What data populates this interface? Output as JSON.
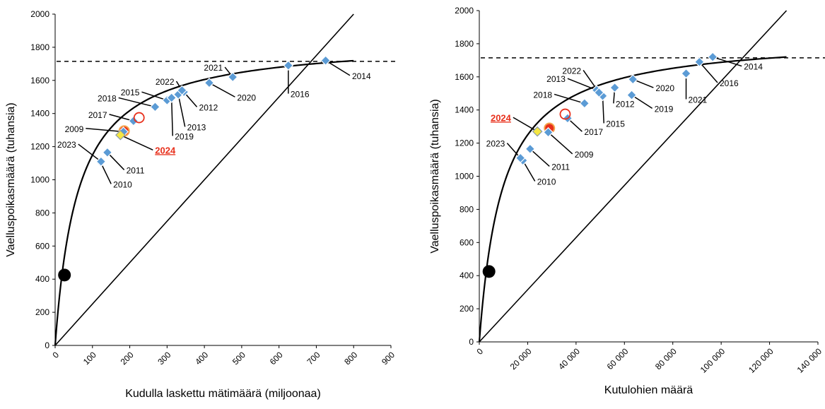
{
  "charts": [
    {
      "type": "scatter",
      "xlabel": "Kudulla laskettu mätimäärä (miljoonaa)",
      "ylabel": "Vaelluspoikasmäärä (tuhansia)",
      "xlim": [
        0,
        900
      ],
      "ylim": [
        0,
        2000
      ],
      "xticks": [
        0,
        100,
        200,
        300,
        400,
        500,
        600,
        700,
        800,
        900
      ],
      "xtick_labels": [
        "0",
        "100",
        "200",
        "300",
        "400",
        "500",
        "600",
        "700",
        "800",
        "900"
      ],
      "yticks": [
        0,
        200,
        400,
        600,
        800,
        1000,
        1200,
        1400,
        1600,
        1800,
        2000
      ],
      "ytick_labels": [
        "0",
        "200",
        "400",
        "600",
        "800",
        "1000",
        "1200",
        "1400",
        "1600",
        "1800",
        "2000"
      ],
      "reference_line_y": 1715,
      "replacement_line": [
        [
          0,
          0
        ],
        [
          800,
          2000
        ]
      ],
      "curve": {
        "a": 1850,
        "b": 61,
        "xmax": 800
      },
      "points": [
        {
          "label": "2009",
          "x": 183,
          "y": 1290,
          "color": "#5b9bd5",
          "lx": 82,
          "ly": 1310
        },
        {
          "label": "2010",
          "x": 122,
          "y": 1105,
          "color": "#5b9bd5",
          "lx": 150,
          "ly": 975
        },
        {
          "label": "2011",
          "x": 140,
          "y": 1165,
          "color": "#5b9bd5",
          "lx": 185,
          "ly": 1060
        },
        {
          "label": "2012",
          "x": 345,
          "y": 1530,
          "color": "#5b9bd5",
          "lx": 380,
          "ly": 1440
        },
        {
          "label": "2013",
          "x": 330,
          "y": 1515,
          "color": "#5b9bd5",
          "lx": 348,
          "ly": 1320
        },
        {
          "label": "2014",
          "x": 725,
          "y": 1720,
          "color": "#5b9bd5",
          "lx": 790,
          "ly": 1630
        },
        {
          "label": "2015",
          "x": 300,
          "y": 1480,
          "color": "#5b9bd5",
          "lx": 232,
          "ly": 1530
        },
        {
          "label": "2016",
          "x": 625,
          "y": 1690,
          "color": "#5b9bd5",
          "lx": 625,
          "ly": 1520
        },
        {
          "label": "2017",
          "x": 210,
          "y": 1355,
          "color": "#5b9bd5",
          "lx": 145,
          "ly": 1395
        },
        {
          "label": "2018",
          "x": 268,
          "y": 1440,
          "color": "#5b9bd5",
          "lx": 170,
          "ly": 1495
        },
        {
          "label": "2019",
          "x": 312,
          "y": 1495,
          "color": "#5b9bd5",
          "lx": 315,
          "ly": 1265
        },
        {
          "label": "2020",
          "x": 413,
          "y": 1585,
          "color": "#5b9bd5",
          "lx": 482,
          "ly": 1500
        },
        {
          "label": "2021",
          "x": 476,
          "y": 1620,
          "color": "#5b9bd5",
          "lx": 455,
          "ly": 1680
        },
        {
          "label": "2022",
          "x": 340,
          "y": 1540,
          "color": "#5b9bd5",
          "lx": 325,
          "ly": 1595
        },
        {
          "label": "2023",
          "x": 123,
          "y": 1110,
          "color": "#5b9bd5",
          "lx": 62,
          "ly": 1215
        },
        {
          "label": "2024",
          "x": 175,
          "y": 1270,
          "color": "#f5e642",
          "lx": 262,
          "ly": 1180,
          "highlight": true
        }
      ],
      "markers": [
        {
          "type": "filled",
          "x": 185,
          "y": 1295,
          "color": "#e8301c"
        },
        {
          "type": "ring",
          "x": 225,
          "y": 1375,
          "color": "#e8301c"
        },
        {
          "type": "black",
          "x": 25,
          "y": 425,
          "color": "#000000"
        }
      ]
    },
    {
      "type": "scatter",
      "xlabel": "Kutulohien määrä",
      "ylabel": "Vaelluspoikasmäärä (tuhansia)",
      "xlim": [
        0,
        140000
      ],
      "ylim": [
        0,
        2000
      ],
      "xticks": [
        0,
        20000,
        40000,
        60000,
        80000,
        100000,
        120000,
        140000
      ],
      "xtick_labels": [
        "0",
        "20 000",
        "40 000",
        "60 000",
        "80 000",
        "100 000",
        "120 000",
        "140 000"
      ],
      "yticks": [
        0,
        200,
        400,
        600,
        800,
        1000,
        1200,
        1400,
        1600,
        1800,
        2000
      ],
      "ytick_labels": [
        "0",
        "200",
        "400",
        "600",
        "800",
        "1000",
        "1200",
        "1400",
        "1600",
        "1800",
        "2000"
      ],
      "reference_line_y": 1715,
      "replacement_line": [
        [
          0,
          0
        ],
        [
          127000,
          2000
        ]
      ],
      "curve": {
        "a": 1850,
        "b": 9600,
        "xmax": 127000
      },
      "points": [
        {
          "label": "2009",
          "x": 28500,
          "y": 1265,
          "color": "#5b9bd5",
          "lx": 38500,
          "ly": 1135
        },
        {
          "label": "2010",
          "x": 18000,
          "y": 1095,
          "color": "#5b9bd5",
          "lx": 23000,
          "ly": 970
        },
        {
          "label": "2011",
          "x": 21000,
          "y": 1165,
          "color": "#5b9bd5",
          "lx": 29000,
          "ly": 1060
        },
        {
          "label": "2012",
          "x": 56000,
          "y": 1535,
          "color": "#5b9bd5",
          "lx": 55500,
          "ly": 1440
        },
        {
          "label": "2013",
          "x": 48500,
          "y": 1520,
          "color": "#5b9bd5",
          "lx": 36500,
          "ly": 1590
        },
        {
          "label": "2014",
          "x": 96500,
          "y": 1720,
          "color": "#5b9bd5",
          "lx": 108500,
          "ly": 1665
        },
        {
          "label": "2015",
          "x": 51000,
          "y": 1485,
          "color": "#5b9bd5",
          "lx": 51500,
          "ly": 1320
        },
        {
          "label": "2016",
          "x": 91000,
          "y": 1690,
          "color": "#5b9bd5",
          "lx": 98500,
          "ly": 1565
        },
        {
          "label": "2017",
          "x": 36500,
          "y": 1350,
          "color": "#5b9bd5",
          "lx": 42500,
          "ly": 1270
        },
        {
          "label": "2018",
          "x": 43500,
          "y": 1440,
          "color": "#5b9bd5",
          "lx": 31000,
          "ly": 1495
        },
        {
          "label": "2019",
          "x": 63000,
          "y": 1490,
          "color": "#5b9bd5",
          "lx": 71500,
          "ly": 1410
        },
        {
          "label": "2020",
          "x": 63500,
          "y": 1585,
          "color": "#5b9bd5",
          "lx": 72000,
          "ly": 1535
        },
        {
          "label": "2021",
          "x": 85500,
          "y": 1620,
          "color": "#5b9bd5",
          "lx": 85500,
          "ly": 1465
        },
        {
          "label": "2022",
          "x": 49500,
          "y": 1505,
          "color": "#5b9bd5",
          "lx": 43000,
          "ly": 1640
        },
        {
          "label": "2023",
          "x": 17000,
          "y": 1110,
          "color": "#5b9bd5",
          "lx": 11500,
          "ly": 1200
        },
        {
          "label": "2024",
          "x": 24000,
          "y": 1270,
          "color": "#f5e642",
          "lx": 14000,
          "ly": 1355,
          "highlight": true
        }
      ],
      "markers": [
        {
          "type": "filled",
          "x": 29000,
          "y": 1290,
          "color": "#e8301c"
        },
        {
          "type": "ring",
          "x": 35500,
          "y": 1375,
          "color": "#e8301c"
        },
        {
          "type": "black",
          "x": 4000,
          "y": 425,
          "color": "#000000"
        }
      ]
    }
  ]
}
